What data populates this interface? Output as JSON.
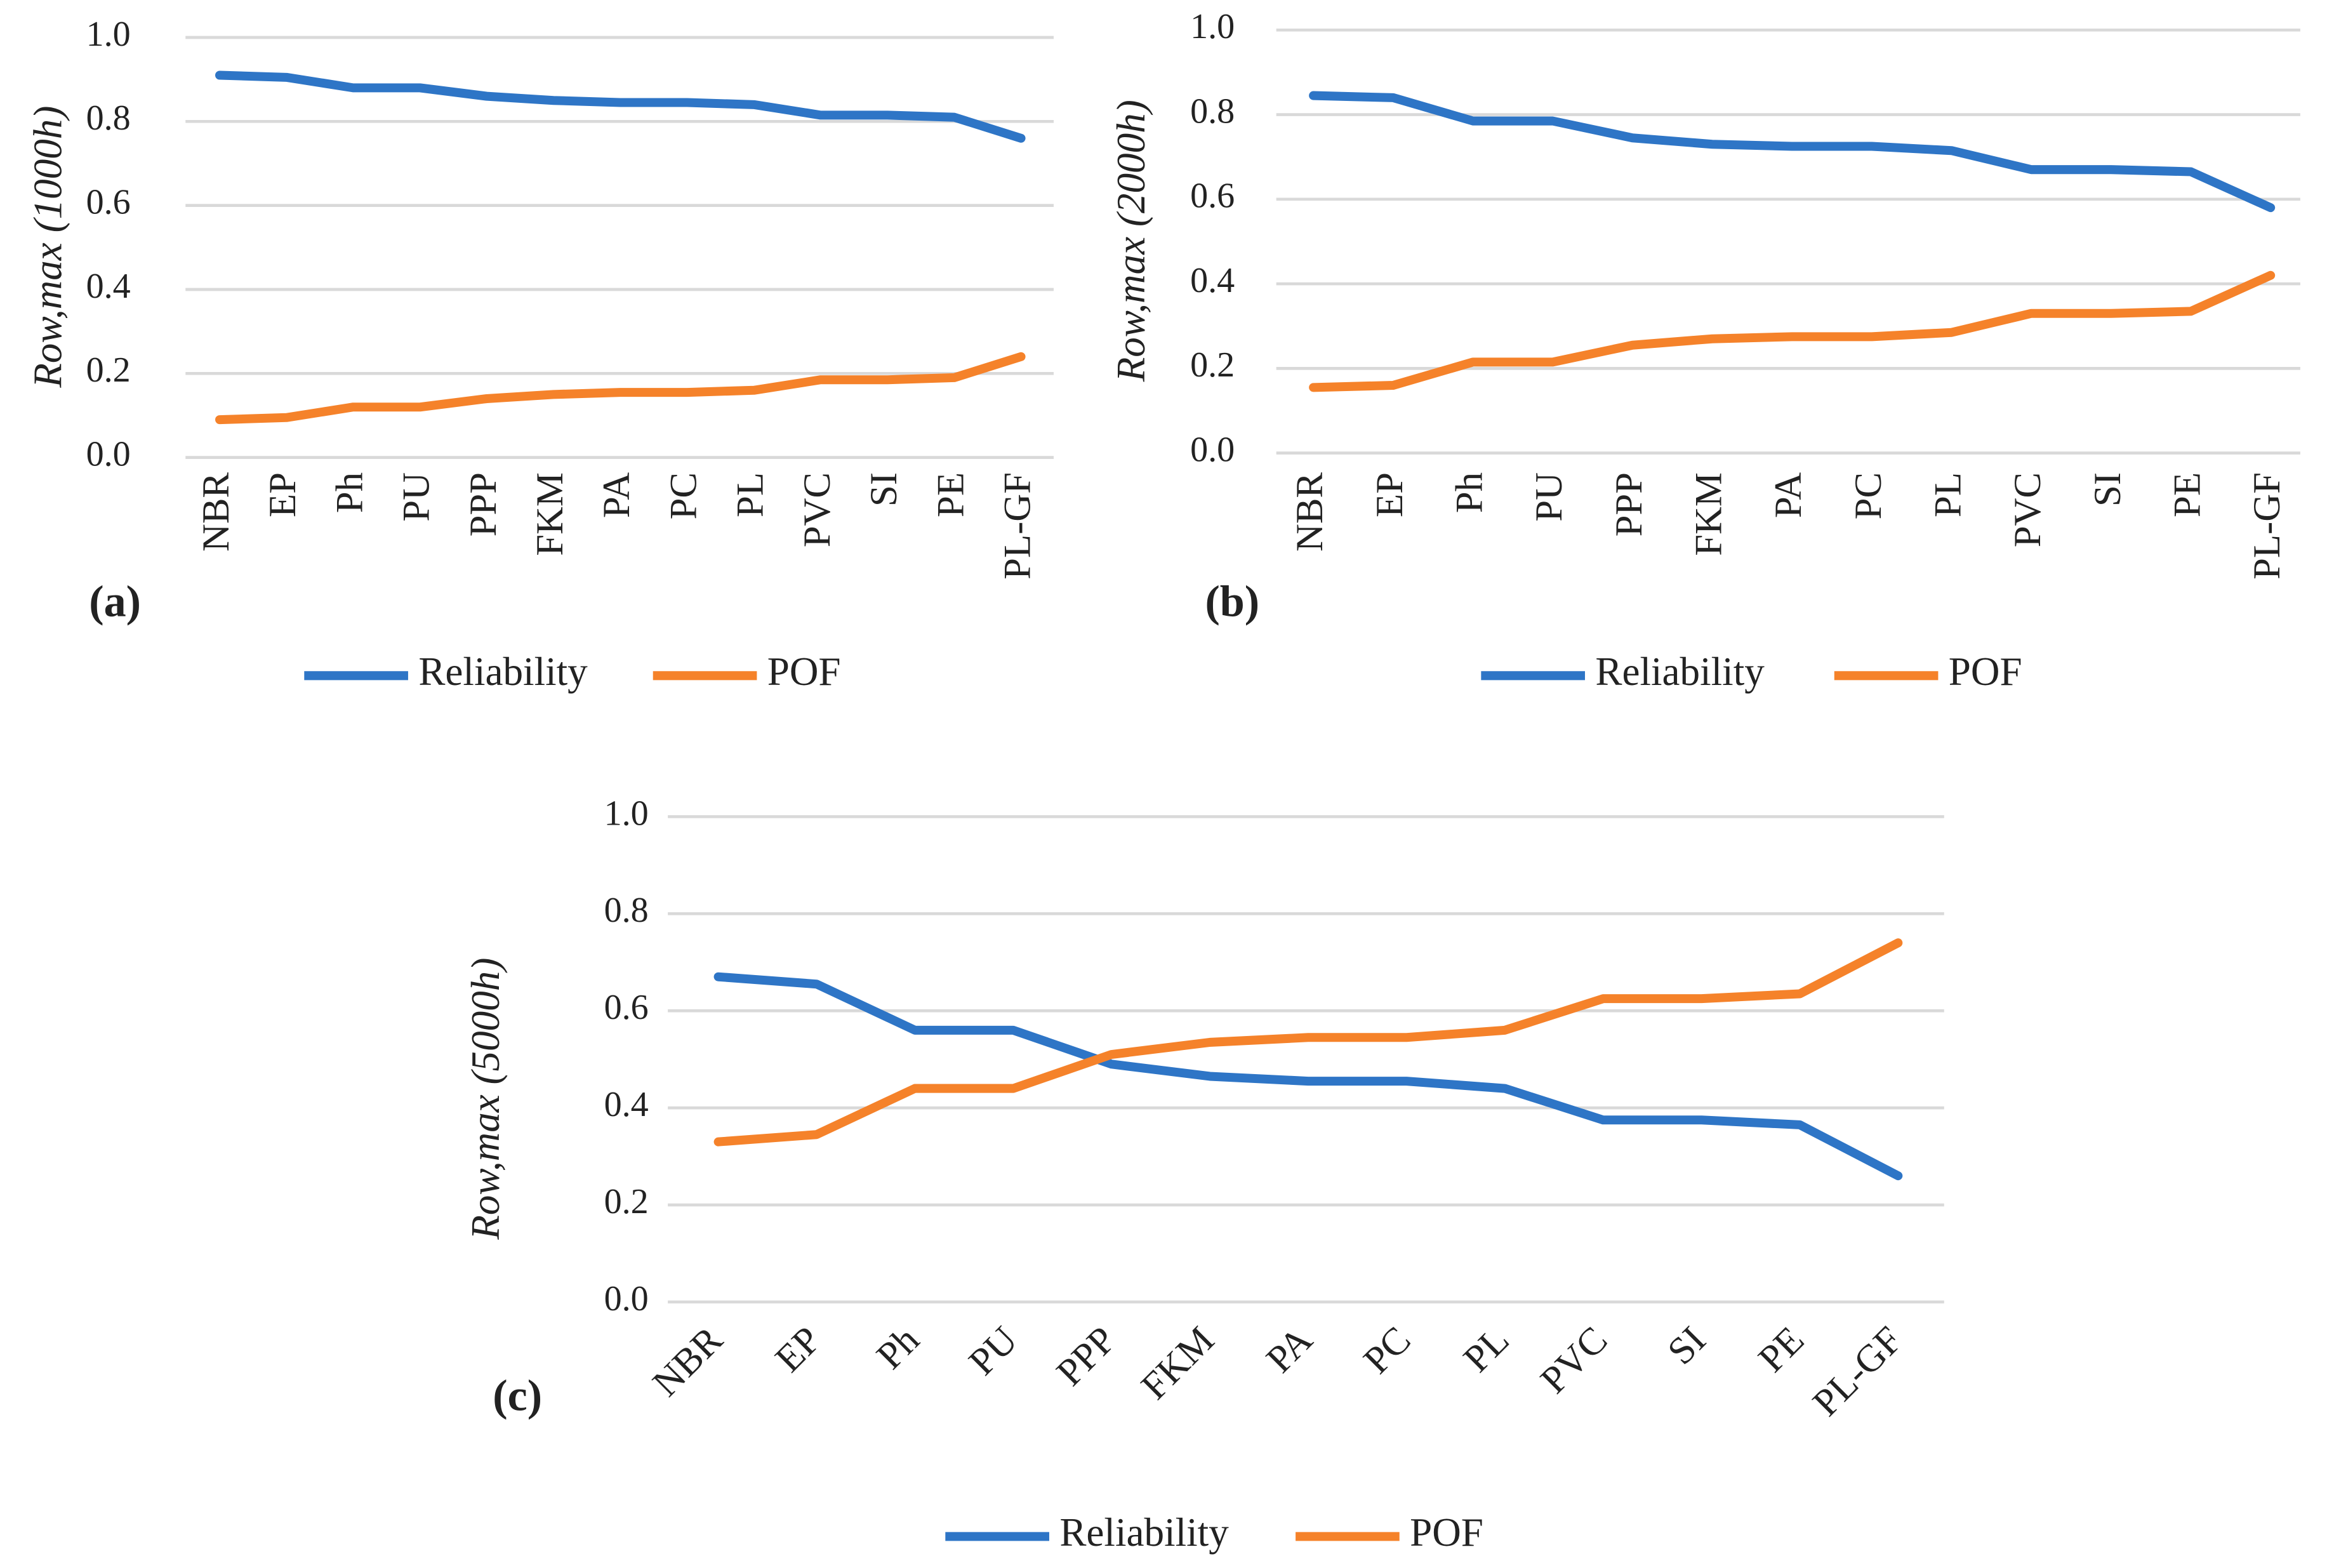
{
  "chart_data": [
    {
      "type": "line",
      "panel_label": "(a)",
      "y_label": "Row,max (1000h)",
      "categories": [
        "NBR",
        "EP",
        "Ph",
        "PU",
        "PPP",
        "FKM",
        "PA",
        "PC",
        "PL",
        "PVC",
        "SI",
        "PE",
        "PL-GF"
      ],
      "series": [
        {
          "name": "Reliability",
          "color": "#2e75c6",
          "values": [
            0.91,
            0.905,
            0.88,
            0.88,
            0.86,
            0.85,
            0.845,
            0.845,
            0.84,
            0.815,
            0.815,
            0.81,
            0.76
          ]
        },
        {
          "name": "POF",
          "color": "#f5822a",
          "values": [
            0.09,
            0.095,
            0.12,
            0.12,
            0.14,
            0.15,
            0.155,
            0.155,
            0.16,
            0.185,
            0.185,
            0.19,
            0.24
          ]
        }
      ],
      "ylim": [
        0,
        1
      ],
      "yticks": [
        {
          "value": 0,
          "label": "0.0"
        },
        0.2,
        0.4,
        0.6,
        0.8,
        {
          "value": 1,
          "label": "1.0"
        }
      ],
      "grid": true
    },
    {
      "type": "line",
      "panel_label": "(b)",
      "y_label": "Row,max (2000h)",
      "categories": [
        "NBR",
        "EP",
        "Ph",
        "PU",
        "PPP",
        "FKM",
        "PA",
        "PC",
        "PL",
        "PVC",
        "SI",
        "PE",
        "PL-GF"
      ],
      "series": [
        {
          "name": "Reliability",
          "color": "#2e75c6",
          "values": [
            0.845,
            0.84,
            0.785,
            0.785,
            0.745,
            0.73,
            0.725,
            0.725,
            0.715,
            0.67,
            0.67,
            0.665,
            0.58
          ]
        },
        {
          "name": "POF",
          "color": "#f5822a",
          "values": [
            0.155,
            0.16,
            0.215,
            0.215,
            0.255,
            0.27,
            0.275,
            0.275,
            0.285,
            0.33,
            0.33,
            0.335,
            0.42
          ]
        }
      ],
      "ylim": [
        0,
        1
      ],
      "yticks": [
        {
          "value": 0,
          "label": "0.0"
        },
        0.2,
        0.4,
        0.6,
        0.8,
        {
          "value": 1,
          "label": "1.0"
        }
      ],
      "grid": true
    },
    {
      "type": "line",
      "panel_label": "(c)",
      "y_label": "Row,max (5000h)",
      "categories": [
        "NBR",
        "EP",
        "Ph",
        "PU",
        "PPP",
        "FKM",
        "PA",
        "PC",
        "PL",
        "PVC",
        "SI",
        "PE",
        "PL-GF"
      ],
      "series": [
        {
          "name": "Reliability",
          "color": "#2e75c6",
          "values": [
            0.67,
            0.655,
            0.56,
            0.56,
            0.49,
            0.465,
            0.455,
            0.455,
            0.44,
            0.375,
            0.375,
            0.365,
            0.26
          ]
        },
        {
          "name": "POF",
          "color": "#f5822a",
          "values": [
            0.33,
            0.345,
            0.44,
            0.44,
            0.51,
            0.535,
            0.545,
            0.545,
            0.56,
            0.625,
            0.625,
            0.635,
            0.74
          ]
        }
      ],
      "ylim": [
        0,
        1
      ],
      "yticks": [
        {
          "value": 0,
          "label": "0.0"
        },
        0.2,
        0.4,
        0.6,
        0.8,
        {
          "value": 1,
          "label": "1.0"
        }
      ],
      "grid": true
    }
  ]
}
